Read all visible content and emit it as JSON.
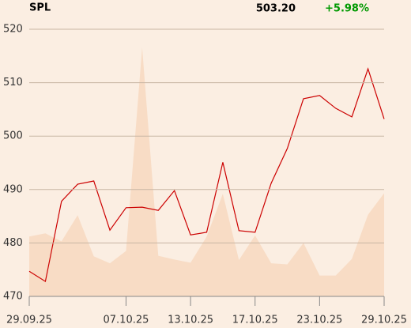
{
  "header": {
    "symbol": "SPL",
    "price": "503.20",
    "change": "+5.98%",
    "change_color": "#009900"
  },
  "chart_data": {
    "type": "line",
    "categories": [
      "29.09.25",
      null,
      null,
      null,
      null,
      null,
      "07.10.25",
      null,
      null,
      null,
      "13.10.25",
      null,
      null,
      null,
      "17.10.25",
      null,
      null,
      null,
      "23.10.25",
      null,
      null,
      null,
      "29.10.25"
    ],
    "series": [
      {
        "color": "#f8dcc5",
        "area": true,
        "values": [
          481.2,
          481.8,
          480.3,
          485.2,
          477.5,
          476.2,
          478.5,
          516.6,
          477.6,
          476.9,
          476.3,
          481.2,
          489.2,
          476.8,
          481.4,
          476.2,
          476.0,
          480.0,
          473.9,
          473.9,
          477.0,
          485.3,
          489.3
        ]
      },
      {
        "color": "#cc0000",
        "area": false,
        "values": [
          474.7,
          472.8,
          487.8,
          491.0,
          491.6,
          482.4,
          486.6,
          486.7,
          486.1,
          489.8,
          481.5,
          482.0,
          495.1,
          482.3,
          482.0,
          491.2,
          497.7,
          507.0,
          507.6,
          505.2,
          503.6,
          512.6,
          503.2
        ]
      }
    ],
    "ylim": [
      470,
      520
    ],
    "yticks": [
      470,
      480,
      490,
      500,
      510,
      520
    ],
    "grid": true
  }
}
